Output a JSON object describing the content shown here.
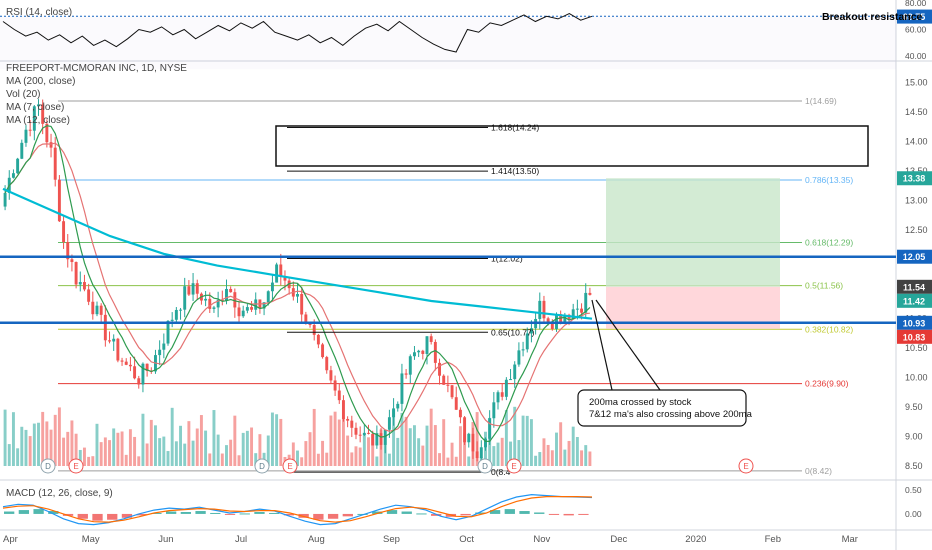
{
  "header": {
    "rsi_label": "RSI (14, close)",
    "main_label": "FREEPORT-MCMORAN INC, 1D, NYSE",
    "indicators": [
      "MA (200, close)",
      "Vol (20)",
      "MA (7, close)",
      "MA (12, close)"
    ],
    "macd_label": "MACD (12, 26, close, 9)"
  },
  "annotations": {
    "breakout": "Breakout resistance",
    "callout_line1": "200ma crossed by stock",
    "callout_line2": "7&12 ma's also crossing above 200ma"
  },
  "colors": {
    "up": "#26a69a",
    "down": "#ef5350",
    "ma200": "#00bcd4",
    "ma7": "#2e9b4f",
    "ma12": "#e57373",
    "resistance": "#1565c0",
    "long_profit": "#c8e6c9",
    "long_loss": "#ffcdd2"
  },
  "chart_data": {
    "type": "candlestick",
    "symbol": "FREEPORT-MCMORAN INC",
    "timeframe": "1D",
    "exchange": "NYSE",
    "x_tick_labels": [
      "Apr",
      "May",
      "Jun",
      "Jul",
      "Aug",
      "Sep",
      "Oct",
      "Nov",
      "Dec",
      "2020",
      "Feb",
      "Mar"
    ],
    "y_tick_labels": [
      "15.00",
      "14.50",
      "14.00",
      "13.50",
      "13.00",
      "12.50",
      "12.00",
      "11.50",
      "11.00",
      "10.50",
      "10.00",
      "9.50",
      "9.00",
      "8.50"
    ],
    "ylim": [
      8.3,
      15.35
    ],
    "close_series": [
      {
        "label": "Apr",
        "value": 12.9
      },
      {
        "label": "",
        "value": 13.6
      },
      {
        "label": "",
        "value": 14.2
      },
      {
        "label": "",
        "value": 14.6
      },
      {
        "label": "",
        "value": 13.8
      },
      {
        "label": "",
        "value": 12.3
      },
      {
        "label": "",
        "value": 11.7
      },
      {
        "label": "May",
        "value": 11.4
      },
      {
        "label": "",
        "value": 10.9
      },
      {
        "label": "",
        "value": 10.5
      },
      {
        "label": "",
        "value": 10.2
      },
      {
        "label": "",
        "value": 10.0
      },
      {
        "label": "",
        "value": 10.2
      },
      {
        "label": "Jun",
        "value": 10.7
      },
      {
        "label": "",
        "value": 11.2
      },
      {
        "label": "",
        "value": 11.5
      },
      {
        "label": "",
        "value": 11.4
      },
      {
        "label": "",
        "value": 11.1
      },
      {
        "label": "",
        "value": 11.6
      },
      {
        "label": "Jul",
        "value": 11.2
      },
      {
        "label": "",
        "value": 11.1
      },
      {
        "label": "",
        "value": 11.3
      },
      {
        "label": "",
        "value": 11.8
      },
      {
        "label": "",
        "value": 11.6
      },
      {
        "label": "",
        "value": 11.2
      },
      {
        "label": "Aug",
        "value": 10.6
      },
      {
        "label": "",
        "value": 10.0
      },
      {
        "label": "",
        "value": 9.6
      },
      {
        "label": "",
        "value": 9.2
      },
      {
        "label": "",
        "value": 9.0
      },
      {
        "label": "",
        "value": 8.9
      },
      {
        "label": "Sep",
        "value": 9.3
      },
      {
        "label": "",
        "value": 9.9
      },
      {
        "label": "",
        "value": 10.4
      },
      {
        "label": "",
        "value": 10.6
      },
      {
        "label": "",
        "value": 10.2
      },
      {
        "label": "",
        "value": 9.6
      },
      {
        "label": "Oct",
        "value": 9.0
      },
      {
        "label": "",
        "value": 8.8
      },
      {
        "label": "",
        "value": 9.3
      },
      {
        "label": "",
        "value": 9.8
      },
      {
        "label": "",
        "value": 10.3
      },
      {
        "label": "",
        "value": 10.8
      },
      {
        "label": "Nov",
        "value": 11.2
      },
      {
        "label": "",
        "value": 11.0
      },
      {
        "label": "",
        "value": 11.1
      },
      {
        "label": "",
        "value": 11.2
      },
      {
        "label": "",
        "value": 11.42
      }
    ],
    "moving_averages": [
      {
        "name": "MA (200, close)",
        "color": "#00bcd4"
      },
      {
        "name": "MA (7, close)",
        "color": "#2e9b4f"
      },
      {
        "name": "MA (12, close)",
        "color": "#e57373"
      }
    ],
    "fibonacci_levels": [
      {
        "label": "1(14.69)",
        "value": 14.69,
        "color": "#9e9e9e"
      },
      {
        "label": "0.786(13.35)",
        "value": 13.35,
        "color": "#64b5f6"
      },
      {
        "label": "0.618(12.29)",
        "value": 12.29,
        "color": "#66bb6a"
      },
      {
        "label": "0.5(11.56)",
        "value": 11.56,
        "color": "#8bc34a"
      },
      {
        "label": "0.382(10.82)",
        "value": 10.82,
        "color": "#c0ca33"
      },
      {
        "label": "0.236(9.90)",
        "value": 9.9,
        "color": "#e53935"
      },
      {
        "label": "0(8.42)",
        "value": 8.42,
        "color": "#9e9e9e"
      }
    ],
    "extension_levels": [
      {
        "label": "1.618(14.24)",
        "value": 14.24
      },
      {
        "label": "1.414(13.50)",
        "value": 13.5
      },
      {
        "label": "1(12.02)",
        "value": 12.02
      },
      {
        "label": "0.65(10.77)",
        "value": 10.77
      },
      {
        "label": "0(8.4",
        "value": 8.4
      }
    ],
    "resistance_lines": [
      {
        "label": "12.05",
        "value": 12.05
      },
      {
        "label": "10.93",
        "value": 10.93
      }
    ],
    "position": {
      "target": 13.38,
      "entry": 11.54,
      "stop": 10.83
    },
    "price_badges": [
      {
        "label": "13.38",
        "value": 13.38,
        "color": "#26a69a"
      },
      {
        "label": "12.05",
        "value": 12.05,
        "color": "#1565c0"
      },
      {
        "label": "11.54",
        "value": 11.54,
        "color": "#424242"
      },
      {
        "label": "11.42",
        "value": 11.42,
        "color": "#26a69a"
      },
      {
        "label": "10.93",
        "value": 10.93,
        "color": "#1565c0"
      },
      {
        "label": "10.83",
        "value": 10.83,
        "color": "#e53935"
      }
    ],
    "rsi": {
      "ylim": [
        40,
        80
      ],
      "tick_labels": [
        "80.00",
        "60.00",
        "40.00"
      ],
      "last": {
        "label": "69.75",
        "value": 69.75
      },
      "values": [
        66,
        60,
        55,
        58,
        52,
        56,
        50,
        55,
        48,
        52,
        47,
        53,
        60,
        58,
        62,
        56,
        60,
        53,
        58,
        63,
        59,
        65,
        61,
        66,
        58,
        55,
        52,
        56,
        50,
        54,
        48,
        55,
        61,
        64,
        59,
        66,
        60,
        54,
        49,
        45,
        43,
        60,
        58,
        65,
        63,
        67,
        71,
        66,
        70,
        68,
        72,
        67,
        70
      ]
    },
    "macd": {
      "ylim": [
        -0.25,
        0.62
      ],
      "tick_labels": [
        "0.50",
        "0.00"
      ],
      "histogram": [
        0.05,
        0.08,
        0.1,
        0.06,
        -0.04,
        -0.1,
        -0.14,
        -0.12,
        -0.08,
        -0.03,
        0.02,
        0.05,
        0.04,
        0.06,
        0.02,
        -0.02,
        0.01,
        0.04,
        0.02,
        -0.03,
        -0.08,
        -0.12,
        -0.1,
        -0.05,
        0.0,
        0.05,
        0.08,
        0.05,
        0.01,
        -0.04,
        -0.06,
        -0.03,
        0.03,
        0.08,
        0.1,
        0.06,
        0.03,
        -0.01,
        -0.03,
        -0.01
      ],
      "macd_line": [
        0.15,
        0.2,
        0.18,
        0.05,
        -0.1,
        -0.2,
        -0.22,
        -0.18,
        -0.1,
        0.0,
        0.08,
        0.12,
        0.1,
        0.14,
        0.08,
        0.02,
        0.05,
        0.1,
        0.06,
        -0.05,
        -0.15,
        -0.22,
        -0.2,
        -0.1,
        0.0,
        0.1,
        0.18,
        0.15,
        0.08,
        -0.05,
        -0.12,
        -0.05,
        0.1,
        0.25,
        0.35,
        0.4,
        0.38,
        0.36,
        0.35,
        0.34
      ],
      "signal_line": [
        0.12,
        0.16,
        0.17,
        0.1,
        0.0,
        -0.1,
        -0.16,
        -0.17,
        -0.13,
        -0.06,
        0.02,
        0.07,
        0.09,
        0.11,
        0.1,
        0.06,
        0.05,
        0.07,
        0.07,
        0.02,
        -0.06,
        -0.14,
        -0.17,
        -0.14,
        -0.06,
        0.03,
        0.11,
        0.14,
        0.11,
        0.03,
        -0.05,
        -0.06,
        0.02,
        0.15,
        0.26,
        0.33,
        0.36,
        0.36,
        0.36,
        0.35
      ]
    },
    "event_markers": [
      "D",
      "E",
      "D",
      "E",
      "D",
      "E",
      "E"
    ]
  }
}
